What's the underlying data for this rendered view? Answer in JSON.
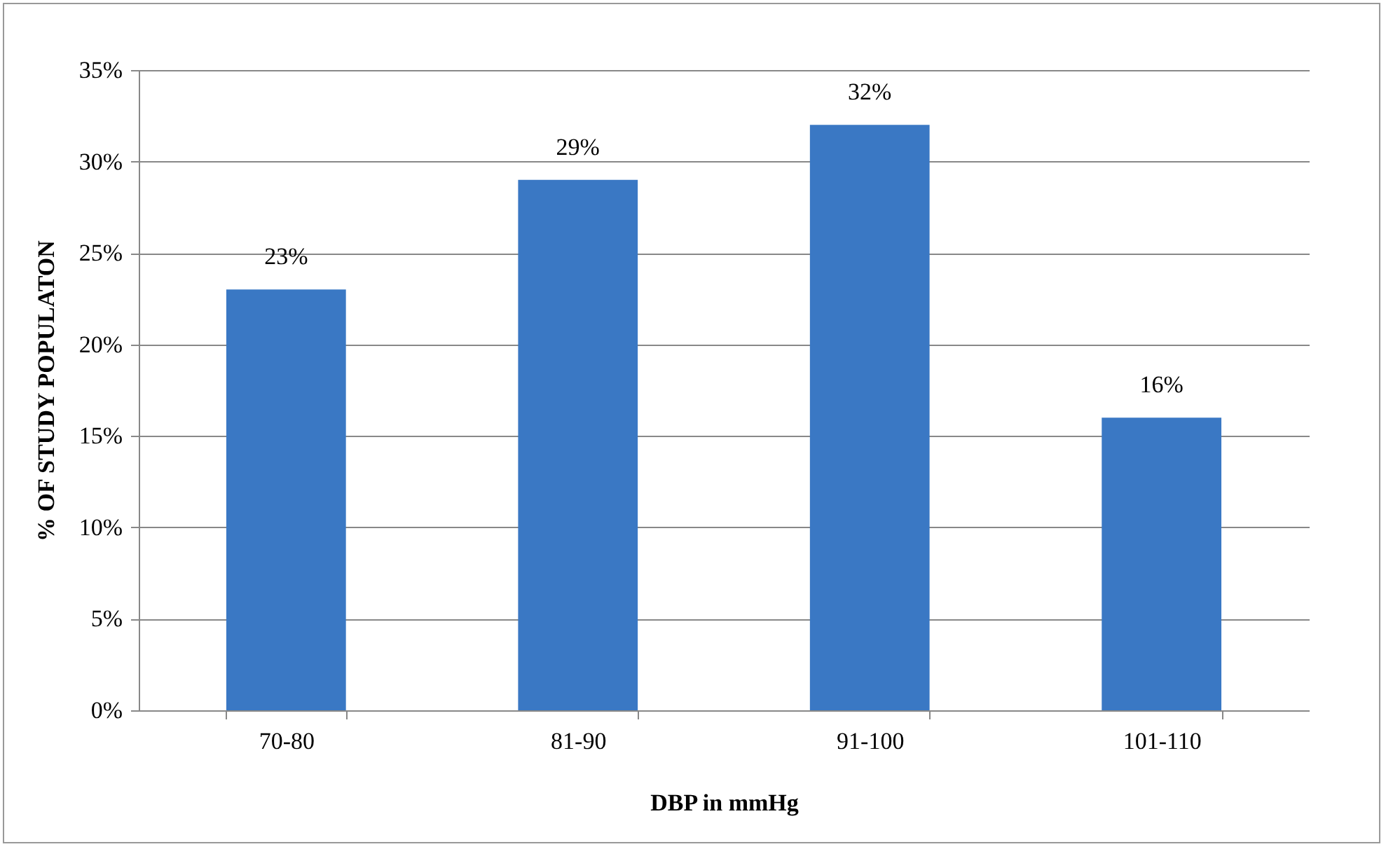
{
  "chart_data": {
    "type": "bar",
    "xlabel": "DBP in mmHg",
    "ylabel": "% OF STUDY POPULATON",
    "categories": [
      "70-80",
      "81-90",
      "91-100",
      "101-110"
    ],
    "values": [
      23,
      29,
      32,
      16
    ],
    "value_labels": [
      "23%",
      "29%",
      "32%",
      "16%"
    ],
    "color": "#3a78c4",
    "ylim": [
      0,
      35
    ],
    "yticks": [
      {
        "value": 0,
        "label": "0%"
      },
      {
        "value": 5,
        "label": "5%"
      },
      {
        "value": 10,
        "label": "10%"
      },
      {
        "value": 15,
        "label": "15%"
      },
      {
        "value": 20,
        "label": "20%"
      },
      {
        "value": 25,
        "label": "25%"
      },
      {
        "value": 30,
        "label": "30%"
      },
      {
        "value": 35,
        "label": "35%"
      }
    ],
    "grid": "y"
  }
}
